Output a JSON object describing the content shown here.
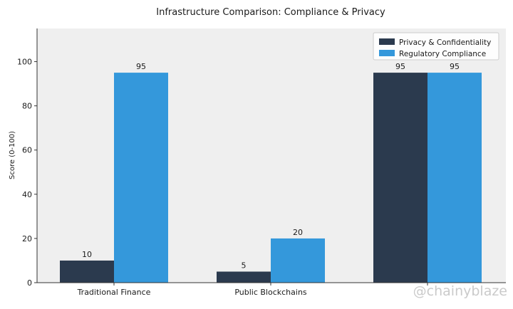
{
  "chart_data": {
    "type": "bar",
    "title": "Infrastructure Comparison: Compliance & Privacy",
    "xlabel": "",
    "ylabel": "Score (0-100)",
    "ylim": [
      0,
      115
    ],
    "yticks": [
      0,
      20,
      40,
      60,
      80,
      100
    ],
    "grid": false,
    "legend_position": "top-right",
    "categories": [
      "Traditional Finance",
      "Public Blockchains",
      ""
    ],
    "series": [
      {
        "name": "Privacy & Confidentiality",
        "values": [
          10,
          5,
          95
        ],
        "color": "#2b3a4e"
      },
      {
        "name": "Regulatory Compliance",
        "values": [
          95,
          20,
          95
        ],
        "color": "#3498db"
      }
    ],
    "plot_background": "#efefef"
  },
  "watermark_text": "@chainyblaze"
}
